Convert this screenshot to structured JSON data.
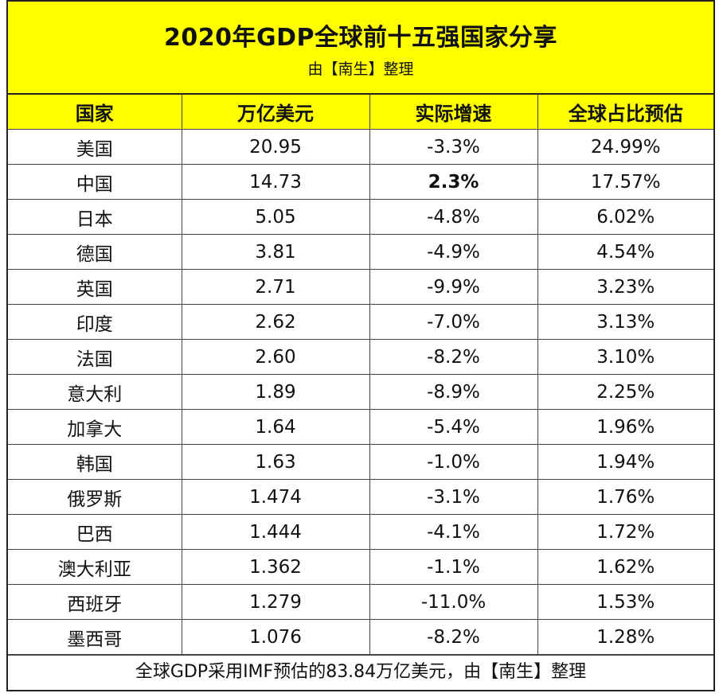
{
  "title": "2020年GDP全球前十五强国家分享",
  "subtitle": "由【南生】整理",
  "headers": [
    "国家",
    "万亿美元",
    "实际增速",
    "全球占比预估"
  ],
  "rows": [
    {
      "country": "美国",
      "gdp": "20.95",
      "growth": "-3.3%",
      "share": "24.99%"
    },
    {
      "country": "中国",
      "gdp": "14.73",
      "growth": "2.3%",
      "share": "17.57%",
      "growth_bold": true
    },
    {
      "country": "日本",
      "gdp": "5.05",
      "growth": "-4.8%",
      "share": "6.02%"
    },
    {
      "country": "德国",
      "gdp": "3.81",
      "growth": "-4.9%",
      "share": "4.54%"
    },
    {
      "country": "英国",
      "gdp": "2.71",
      "growth": "-9.9%",
      "share": "3.23%"
    },
    {
      "country": "印度",
      "gdp": "2.62",
      "growth": "-7.0%",
      "share": "3.13%"
    },
    {
      "country": "法国",
      "gdp": "2.60",
      "growth": "-8.2%",
      "share": "3.10%"
    },
    {
      "country": "意大利",
      "gdp": "1.89",
      "growth": "-8.9%",
      "share": "2.25%"
    },
    {
      "country": "加拿大",
      "gdp": "1.64",
      "growth": "-5.4%",
      "share": "1.96%"
    },
    {
      "country": "韩国",
      "gdp": "1.63",
      "growth": "-1.0%",
      "share": "1.94%"
    },
    {
      "country": "俄罗斯",
      "gdp": "1.474",
      "growth": "-3.1%",
      "share": "1.76%"
    },
    {
      "country": "巴西",
      "gdp": "1.444",
      "growth": "-4.1%",
      "share": "1.72%"
    },
    {
      "country": "澳大利亚",
      "gdp": "1.362",
      "growth": "-1.1%",
      "share": "1.62%"
    },
    {
      "country": "西班牙",
      "gdp": "1.279",
      "growth": "-11.0%",
      "share": "1.53%"
    },
    {
      "country": "墨西哥",
      "gdp": "1.076",
      "growth": "-8.2%",
      "share": "1.28%"
    }
  ],
  "footer": "全球GDP采用IMF预估的83.84万亿美元，由【南生】整理",
  "colors": {
    "header_fill": "#ffff00",
    "border": "#444444"
  }
}
